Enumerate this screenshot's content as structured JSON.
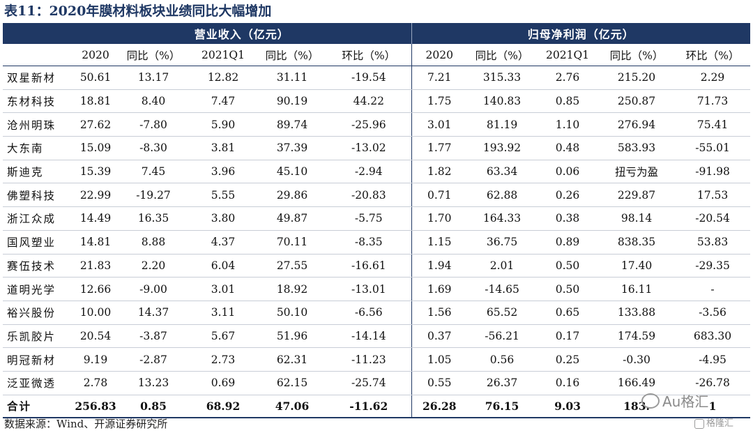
{
  "title": "表11：2020年膜材料板块业绩同比大幅增加",
  "groups": {
    "revenue": "营业收入（亿元）",
    "profit": "归母净利润（亿元）"
  },
  "subheaders": [
    "",
    "2020",
    "同比（%）",
    "2021Q1",
    "同比（%）",
    "环比（%）",
    "2020",
    "同比（%）",
    "2021Q1",
    "同比（%）",
    "环比（%）"
  ],
  "rows": [
    [
      "双星新材",
      "50.61",
      "13.17",
      "12.82",
      "31.11",
      "-19.54",
      "7.21",
      "315.33",
      "2.76",
      "215.20",
      "2.29"
    ],
    [
      "东材科技",
      "18.81",
      "8.40",
      "7.47",
      "90.19",
      "44.22",
      "1.75",
      "140.83",
      "0.85",
      "250.87",
      "71.73"
    ],
    [
      "沧州明珠",
      "27.62",
      "-7.80",
      "5.90",
      "89.74",
      "-25.96",
      "3.01",
      "81.19",
      "1.10",
      "276.94",
      "75.41"
    ],
    [
      "大东南",
      "15.09",
      "-8.30",
      "3.81",
      "37.39",
      "-13.02",
      "1.77",
      "193.92",
      "0.48",
      "583.93",
      "-55.01"
    ],
    [
      "斯迪克",
      "15.39",
      "7.45",
      "3.96",
      "45.10",
      "-2.94",
      "1.82",
      "63.34",
      "0.06",
      "扭亏为盈",
      "-91.98"
    ],
    [
      "佛塑科技",
      "22.99",
      "-19.27",
      "5.55",
      "29.86",
      "-20.83",
      "0.71",
      "62.88",
      "0.26",
      "229.87",
      "17.53"
    ],
    [
      "浙江众成",
      "14.49",
      "16.35",
      "3.80",
      "49.87",
      "-5.75",
      "1.70",
      "164.33",
      "0.38",
      "98.14",
      "-20.54"
    ],
    [
      "国风塑业",
      "14.81",
      "8.88",
      "4.37",
      "70.11",
      "-8.35",
      "1.15",
      "36.75",
      "0.89",
      "838.35",
      "53.83"
    ],
    [
      "赛伍技术",
      "21.83",
      "2.20",
      "6.04",
      "27.55",
      "-16.61",
      "1.94",
      "2.01",
      "0.50",
      "17.40",
      "-29.35"
    ],
    [
      "道明光学",
      "12.66",
      "-9.00",
      "3.01",
      "18.92",
      "-13.01",
      "1.69",
      "-14.65",
      "0.50",
      "16.11",
      "-"
    ],
    [
      "裕兴股份",
      "10.00",
      "14.37",
      "3.11",
      "50.10",
      "-6.56",
      "1.56",
      "65.52",
      "0.65",
      "133.88",
      "-3.56"
    ],
    [
      "乐凯胶片",
      "20.54",
      "-3.87",
      "5.67",
      "51.96",
      "-14.14",
      "0.37",
      "-56.21",
      "0.17",
      "174.59",
      "683.30"
    ],
    [
      "明冠新材",
      "9.19",
      "-2.87",
      "2.73",
      "62.31",
      "-11.23",
      "1.05",
      "0.56",
      "0.25",
      "-0.30",
      "-4.95"
    ],
    [
      "泛亚微透",
      "2.78",
      "13.23",
      "0.69",
      "62.15",
      "-25.74",
      "0.55",
      "26.37",
      "0.16",
      "166.49",
      "-26.78"
    ]
  ],
  "total": [
    "合计",
    "256.83",
    "0.85",
    "68.92",
    "47.06",
    "-11.62",
    "26.28",
    "76.15",
    "9.03",
    "183.",
    "1"
  ],
  "source": "数据来源：Wind、开源证券研究所",
  "watermark": {
    "main": "Au格汇",
    "corner": "格隆汇"
  }
}
